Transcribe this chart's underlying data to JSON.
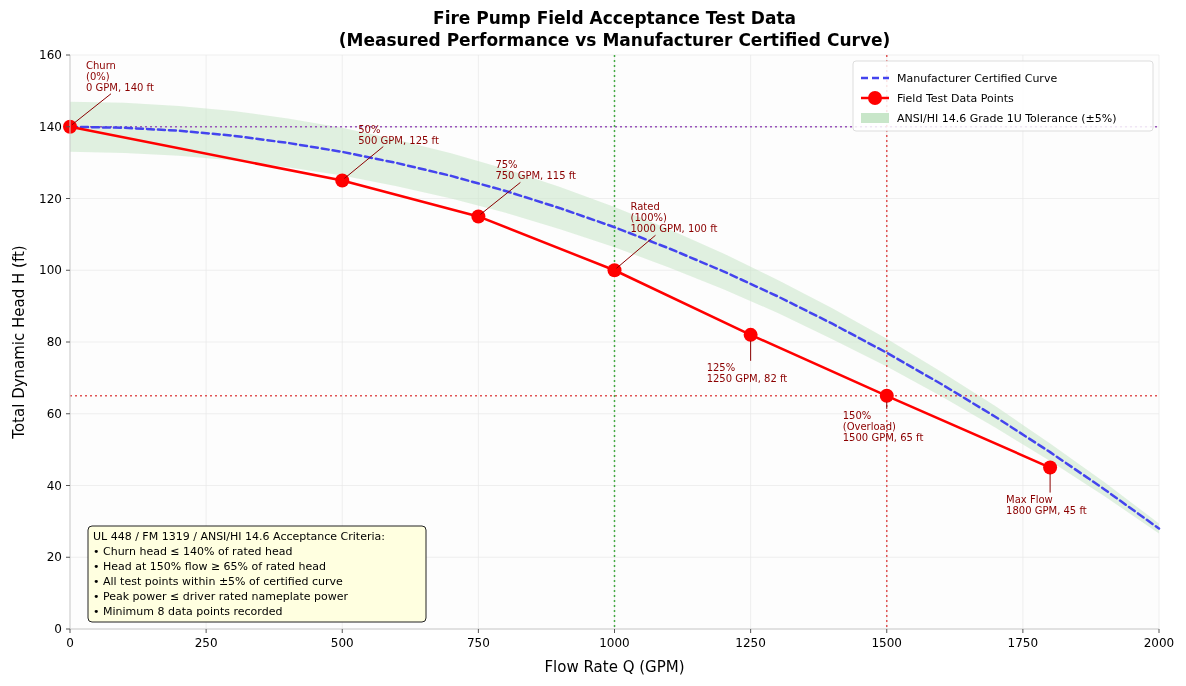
{
  "chart_data": {
    "type": "line",
    "title": "Fire Pump Field Acceptance Test Data",
    "subtitle": "(Measured Performance vs Manufacturer Certified Curve)",
    "xlabel": "Flow Rate Q (GPM)",
    "ylabel": "Total Dynamic Head H (ft)",
    "xlim": [
      0,
      2000
    ],
    "ylim": [
      0,
      160
    ],
    "xticks": [
      0,
      250,
      500,
      750,
      1000,
      1250,
      1500,
      1750,
      2000
    ],
    "yticks": [
      0,
      20,
      40,
      60,
      80,
      100,
      120,
      140,
      160
    ],
    "grid": true,
    "legend": "top right",
    "x": [
      0,
      100,
      200,
      300,
      400,
      500,
      600,
      700,
      800,
      900,
      1000,
      1100,
      1200,
      1300,
      1400,
      1500,
      1600,
      1700,
      1800,
      1900,
      2000
    ],
    "series": [
      {
        "name": "Manufacturer Certified Curve",
        "color": "#4444ee",
        "line_style": "dashed",
        "marker": "none",
        "values": [
          140,
          139.7,
          138.9,
          137.5,
          135.5,
          133,
          129.9,
          126.3,
          122.1,
          117.3,
          112,
          106.1,
          99.7,
          92.7,
          85.1,
          77,
          68.3,
          59.1,
          49.3,
          38.9,
          28
        ]
      },
      {
        "name": "Field Test Data Points",
        "color": "#ff0000",
        "line_style": "solid",
        "marker": "circle",
        "x": [
          0,
          500,
          750,
          1000,
          1250,
          1500,
          1800
        ],
        "values": [
          140,
          125,
          115,
          100,
          82,
          65,
          45
        ]
      },
      {
        "name": "ANSI/HI 14.6 Grade 1U Tolerance (±5%)",
        "type": "area",
        "color": "#c8e6c9",
        "values": [
          null,
          null,
          null,
          null,
          null,
          null,
          null,
          null,
          null,
          null,
          null,
          null,
          null,
          null,
          null,
          null,
          null,
          null,
          null,
          null,
          null
        ],
        "lower": [
          133,
          132.7,
          131.9,
          130.6,
          128.7,
          126.4,
          123.4,
          120,
          116,
          111.4,
          106.4,
          100.8,
          94.7,
          88.1,
          80.8,
          73.2,
          64.9,
          56.1,
          46.8,
          37,
          26.6
        ],
        "upper": [
          147,
          146.7,
          145.8,
          144.4,
          142.3,
          139.7,
          136.4,
          132.6,
          128.2,
          123.2,
          117.6,
          111.4,
          104.7,
          97.3,
          89.4,
          80.9,
          71.7,
          62.1,
          51.7,
          40.9,
          29.4
        ]
      }
    ],
    "ref_lines": [
      {
        "axis": "y",
        "value": 140,
        "color": "#9955bb",
        "line_style": "dotted"
      },
      {
        "axis": "y",
        "value": 65,
        "color": "#e05555",
        "line_style": "dotted"
      },
      {
        "axis": "x",
        "value": 1000,
        "color": "#44aa44",
        "line_style": "dotted"
      },
      {
        "axis": "x",
        "value": 1500,
        "color": "#e05555",
        "line_style": "dotted"
      }
    ],
    "annotations": [
      {
        "text": "Churn\n(0%)\n0 GPM, 140 ft",
        "x": 0,
        "y": 140
      },
      {
        "text": "50%\n500 GPM, 125 ft",
        "x": 500,
        "y": 125
      },
      {
        "text": "75%\n750 GPM, 115 ft",
        "x": 750,
        "y": 115
      },
      {
        "text": "Rated\n(100%)\n1000 GPM, 100 ft",
        "x": 1000,
        "y": 100
      },
      {
        "text": "125%\n1250 GPM, 82 ft",
        "x": 1250,
        "y": 82
      },
      {
        "text": "150%\n(Overload)\n1500 GPM, 65 ft",
        "x": 1500,
        "y": 65
      },
      {
        "text": "Max Flow\n1800 GPM, 45 ft",
        "x": 1800,
        "y": 45
      },
      "UL 448 / FM 1319 / ANSI/HI 14.6 Acceptance Criteria:\n• Churn head ≤ 140% of rated head\n• Head at 150% flow ≥ 65% of rated head\n• All test points within ±5% of certified curve\n• Peak power ≤ driver rated nameplate power\n• Minimum 8 data points recorded"
    ]
  }
}
